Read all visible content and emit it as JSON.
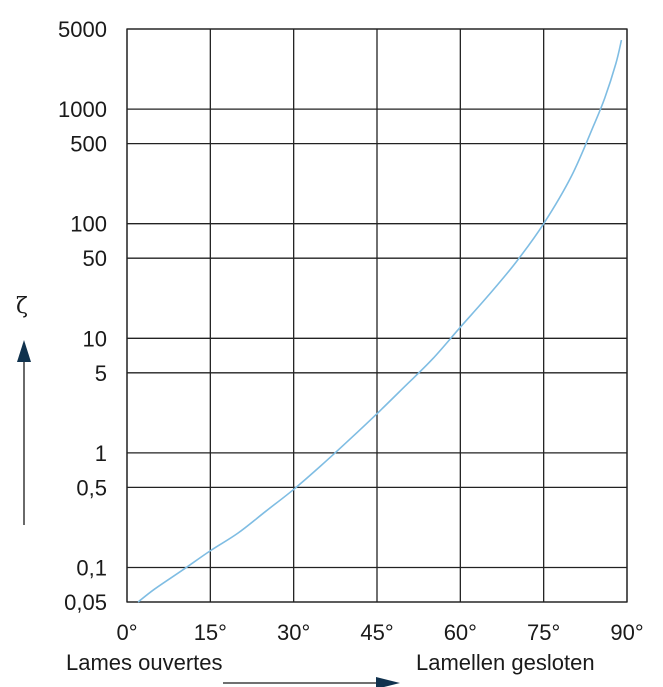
{
  "colors": {
    "curve": "#7fbde3",
    "grid": "#222222",
    "arrow": "#10324e",
    "text": "#1a1a1a"
  },
  "chart_data": {
    "type": "line",
    "x_scale": "linear",
    "y_scale": "log",
    "xlim": [
      0,
      90
    ],
    "ylim": [
      0.05,
      5000
    ],
    "grid": true,
    "x_ticks": [
      0,
      15,
      30,
      45,
      60,
      75,
      90
    ],
    "x_tick_labels": [
      "0°",
      "15°",
      "30°",
      "45°",
      "60°",
      "75°",
      "90°"
    ],
    "y_ticks": [
      0.05,
      0.1,
      0.5,
      1,
      5,
      10,
      50,
      100,
      500,
      1000,
      5000
    ],
    "y_tick_labels": [
      "0,05",
      "0,1",
      "0,5",
      "1",
      "5",
      "10",
      "50",
      "100",
      "500",
      "1000",
      "5000"
    ],
    "ylabel": "ζ",
    "x_caption_left": "Lames ouvertes",
    "x_caption_right": "Lamellen gesloten",
    "series": [
      {
        "x": [
          2,
          5,
          10,
          15,
          20,
          25,
          30,
          35,
          40,
          45,
          50,
          55,
          60,
          65,
          70,
          75,
          80,
          84,
          86,
          88,
          89
        ],
        "y": [
          0.05,
          0.065,
          0.095,
          0.14,
          0.2,
          0.31,
          0.48,
          0.78,
          1.3,
          2.2,
          3.8,
          6.6,
          12.5,
          23.5,
          46,
          100,
          260,
          720,
          1250,
          2500,
          4000
        ]
      }
    ]
  }
}
